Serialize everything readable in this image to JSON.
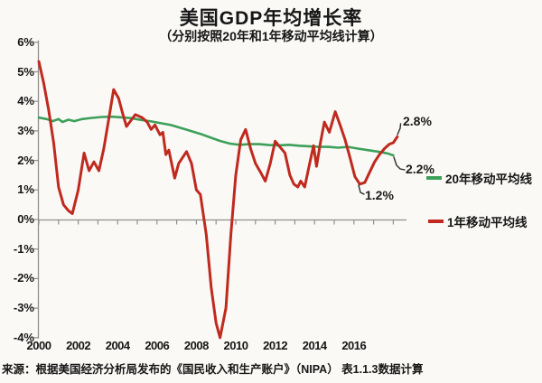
{
  "header": {
    "title": "美国GDP年均增长率",
    "subtitle": "（分别按照20年和1年移动平均线计算）"
  },
  "source_note": "来源：根据美国经济分析局发布的《国民收入和生产账户》（NIPA） 表1.1.3数据计算",
  "legend": [
    {
      "label": "20年移动平均线",
      "color": "#3da05a"
    },
    {
      "label": "1年移动平均线",
      "color": "#c02a1e"
    }
  ],
  "annotations": [
    {
      "text": "2.8%"
    },
    {
      "text": "2.2%"
    },
    {
      "text": "1.2%"
    }
  ],
  "colors": {
    "axis": "#8f8f8f",
    "leader": "#2a2a2a",
    "background": "#faf9f6",
    "green_series": "#3da05a",
    "red_series": "#c02a1e"
  },
  "chart_data": {
    "type": "line",
    "title": "美国GDP年均增长率",
    "subtitle": "（分别按照20年和1年移动平均线计算）",
    "xlabel": "",
    "ylabel": "",
    "xlim": [
      2000,
      2018.6
    ],
    "ylim": [
      -4,
      6
    ],
    "grid": false,
    "legend_position": "right",
    "x_ticks": [
      {
        "v": 2000,
        "label": "2000"
      },
      {
        "v": 2002,
        "label": "2002"
      },
      {
        "v": 2004,
        "label": "2004"
      },
      {
        "v": 2006,
        "label": "2006"
      },
      {
        "v": 2008,
        "label": "2008"
      },
      {
        "v": 2010,
        "label": "2010"
      },
      {
        "v": 2012,
        "label": "2012"
      },
      {
        "v": 2014,
        "label": "2014"
      },
      {
        "v": 2016,
        "label": "2016"
      }
    ],
    "y_ticks": [
      {
        "v": 6,
        "label": "6%"
      },
      {
        "v": 5,
        "label": "5%"
      },
      {
        "v": 4,
        "label": "4%"
      },
      {
        "v": 3,
        "label": "3%"
      },
      {
        "v": 2,
        "label": "2%"
      },
      {
        "v": 1,
        "label": "1%"
      },
      {
        "v": 0,
        "label": "0%"
      },
      {
        "v": -1,
        "label": "-1%"
      },
      {
        "v": -2,
        "label": "-2%"
      },
      {
        "v": -3,
        "label": "-3%"
      },
      {
        "v": -4,
        "label": "-4%"
      }
    ],
    "series": [
      {
        "name": "20年移动平均线",
        "color": "#3da05a",
        "end_label": "2.2%",
        "points": [
          [
            2000.0,
            3.45
          ],
          [
            2000.4,
            3.4
          ],
          [
            2000.7,
            3.33
          ],
          [
            2001.0,
            3.4
          ],
          [
            2001.2,
            3.3
          ],
          [
            2001.5,
            3.38
          ],
          [
            2001.8,
            3.33
          ],
          [
            2002.2,
            3.4
          ],
          [
            2002.7,
            3.44
          ],
          [
            2003.2,
            3.47
          ],
          [
            2003.7,
            3.48
          ],
          [
            2004.2,
            3.46
          ],
          [
            2004.7,
            3.43
          ],
          [
            2005.2,
            3.37
          ],
          [
            2005.7,
            3.32
          ],
          [
            2006.2,
            3.26
          ],
          [
            2006.7,
            3.2
          ],
          [
            2007.2,
            3.1
          ],
          [
            2007.7,
            3.0
          ],
          [
            2008.2,
            2.9
          ],
          [
            2008.7,
            2.78
          ],
          [
            2009.2,
            2.66
          ],
          [
            2009.7,
            2.57
          ],
          [
            2010.2,
            2.53
          ],
          [
            2010.7,
            2.55
          ],
          [
            2011.2,
            2.55
          ],
          [
            2011.7,
            2.52
          ],
          [
            2012.2,
            2.51
          ],
          [
            2012.7,
            2.53
          ],
          [
            2013.2,
            2.5
          ],
          [
            2013.7,
            2.48
          ],
          [
            2014.2,
            2.46
          ],
          [
            2014.7,
            2.46
          ],
          [
            2015.2,
            2.43
          ],
          [
            2015.7,
            2.46
          ],
          [
            2016.2,
            2.4
          ],
          [
            2016.7,
            2.35
          ],
          [
            2017.2,
            2.3
          ],
          [
            2017.7,
            2.24
          ],
          [
            2018.0,
            2.17
          ]
        ]
      },
      {
        "name": "1年移动平均线",
        "color": "#c02a1e",
        "end_label": "2.8%",
        "points": [
          [
            2000.0,
            5.35
          ],
          [
            2000.25,
            4.6
          ],
          [
            2000.5,
            3.7
          ],
          [
            2000.75,
            2.6
          ],
          [
            2001.0,
            1.1
          ],
          [
            2001.25,
            0.5
          ],
          [
            2001.5,
            0.3
          ],
          [
            2001.7,
            0.2
          ],
          [
            2002.0,
            1.0
          ],
          [
            2002.3,
            2.25
          ],
          [
            2002.55,
            1.65
          ],
          [
            2002.8,
            1.95
          ],
          [
            2003.05,
            1.65
          ],
          [
            2003.3,
            2.4
          ],
          [
            2003.55,
            3.4
          ],
          [
            2003.8,
            4.4
          ],
          [
            2004.05,
            4.1
          ],
          [
            2004.25,
            3.6
          ],
          [
            2004.45,
            3.15
          ],
          [
            2004.9,
            3.55
          ],
          [
            2005.25,
            3.45
          ],
          [
            2005.5,
            3.3
          ],
          [
            2005.7,
            3.05
          ],
          [
            2005.9,
            3.2
          ],
          [
            2006.15,
            2.87
          ],
          [
            2006.3,
            2.95
          ],
          [
            2006.45,
            2.2
          ],
          [
            2006.6,
            2.35
          ],
          [
            2006.9,
            1.4
          ],
          [
            2007.1,
            1.9
          ],
          [
            2007.5,
            2.3
          ],
          [
            2007.75,
            1.9
          ],
          [
            2008.0,
            1.0
          ],
          [
            2008.2,
            0.85
          ],
          [
            2008.5,
            -0.5
          ],
          [
            2008.75,
            -2.3
          ],
          [
            2009.0,
            -3.5
          ],
          [
            2009.2,
            -4.0
          ],
          [
            2009.5,
            -3.0
          ],
          [
            2009.75,
            -0.5
          ],
          [
            2010.0,
            1.5
          ],
          [
            2010.25,
            2.7
          ],
          [
            2010.5,
            3.05
          ],
          [
            2010.75,
            2.4
          ],
          [
            2011.0,
            1.9
          ],
          [
            2011.3,
            1.55
          ],
          [
            2011.5,
            1.3
          ],
          [
            2011.75,
            1.9
          ],
          [
            2012.0,
            2.65
          ],
          [
            2012.25,
            2.45
          ],
          [
            2012.5,
            2.25
          ],
          [
            2012.75,
            1.5
          ],
          [
            2012.95,
            1.2
          ],
          [
            2013.15,
            1.1
          ],
          [
            2013.3,
            1.3
          ],
          [
            2013.5,
            1.1
          ],
          [
            2013.75,
            1.9
          ],
          [
            2013.95,
            2.5
          ],
          [
            2014.1,
            1.8
          ],
          [
            2014.3,
            2.6
          ],
          [
            2014.5,
            3.3
          ],
          [
            2014.75,
            2.95
          ],
          [
            2015.05,
            3.65
          ],
          [
            2015.3,
            3.2
          ],
          [
            2015.55,
            2.7
          ],
          [
            2015.8,
            2.1
          ],
          [
            2016.05,
            1.45
          ],
          [
            2016.3,
            1.2
          ],
          [
            2016.55,
            1.25
          ],
          [
            2016.8,
            1.6
          ],
          [
            2017.05,
            1.95
          ],
          [
            2017.3,
            2.2
          ],
          [
            2017.55,
            2.4
          ],
          [
            2017.8,
            2.55
          ],
          [
            2018.0,
            2.6
          ],
          [
            2018.2,
            2.8
          ]
        ]
      }
    ]
  }
}
